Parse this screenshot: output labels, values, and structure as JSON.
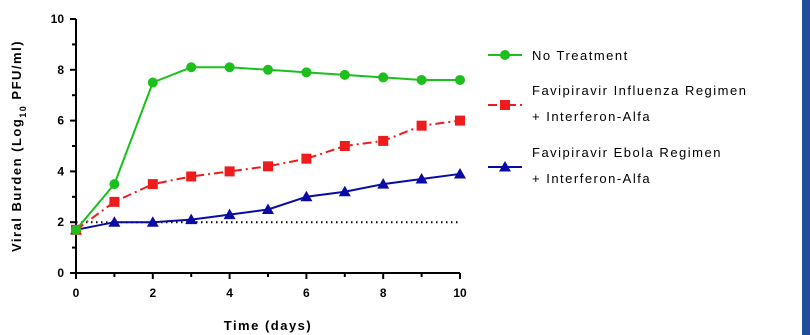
{
  "chart_data": {
    "type": "line",
    "title": "",
    "xlabel": "Time (days)",
    "ylabel_parts": {
      "prefix": "Viral Burden (Log",
      "subscript": "10",
      "suffix": " PFU/ml)"
    },
    "xlim": [
      0,
      10
    ],
    "ylim": [
      0,
      10
    ],
    "x_ticks": [
      "0",
      "2",
      "4",
      "6",
      "8",
      "10"
    ],
    "y_ticks": [
      "0",
      "2",
      "4",
      "6",
      "8",
      "10"
    ],
    "grid": false,
    "legend_position": "right",
    "reference_line": {
      "y": 2,
      "style": "dotted",
      "color": "#000000"
    },
    "x": [
      0,
      1,
      2,
      3,
      4,
      5,
      6,
      7,
      8,
      9,
      10
    ],
    "series": [
      {
        "name_lines": [
          "No Treatment"
        ],
        "color": "#1cbf1c",
        "marker": "circle",
        "line_style": "solid",
        "values": [
          1.7,
          3.5,
          7.5,
          8.1,
          8.1,
          8.0,
          7.9,
          7.8,
          7.7,
          7.6,
          7.6
        ]
      },
      {
        "name_lines": [
          "Favipiravir Influenza Regimen",
          "+ Interferon-Alfa"
        ],
        "color": "#ee1c1c",
        "marker": "square",
        "line_style": "dashdot",
        "values": [
          1.7,
          2.8,
          3.5,
          3.8,
          4.0,
          4.2,
          4.5,
          5.0,
          5.2,
          5.8,
          6.0
        ]
      },
      {
        "name_lines": [
          "Favipiravir Ebola Regimen",
          "+ Interferon-Alfa"
        ],
        "color": "#0a0aa5",
        "marker": "triangle",
        "line_style": "solid",
        "values": [
          1.7,
          2.0,
          2.0,
          2.1,
          2.3,
          2.5,
          3.0,
          3.2,
          3.5,
          3.7,
          3.9
        ]
      }
    ],
    "colors": {
      "axis": "#000000",
      "page_border": "#1f4f9b"
    }
  }
}
